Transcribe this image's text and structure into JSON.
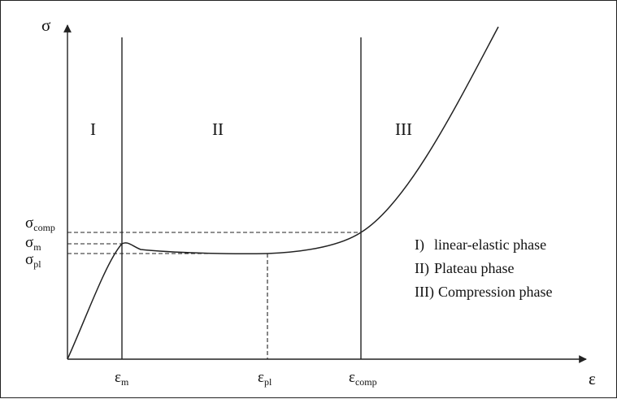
{
  "axes": {
    "y_symbol": "σ",
    "x_symbol": "ε"
  },
  "phases": {
    "I": "I",
    "II": "II",
    "III": "III"
  },
  "y_labels": {
    "comp": {
      "base": "σ",
      "sub": "comp"
    },
    "m": {
      "base": "σ",
      "sub": "m"
    },
    "pl": {
      "base": "σ",
      "sub": "pl"
    }
  },
  "x_labels": {
    "m": {
      "base": "ε",
      "sub": "m"
    },
    "pl": {
      "base": "ε",
      "sub": "pl"
    },
    "comp": {
      "base": "ε",
      "sub": "comp"
    }
  },
  "legend": [
    {
      "num": "I)",
      "text": "linear-elastic phase"
    },
    {
      "num": "II)",
      "text": "Plateau phase"
    },
    {
      "num": "III)",
      "text": "Compression phase"
    }
  ],
  "colors": {
    "line": "#222222",
    "text": "#111111"
  }
}
